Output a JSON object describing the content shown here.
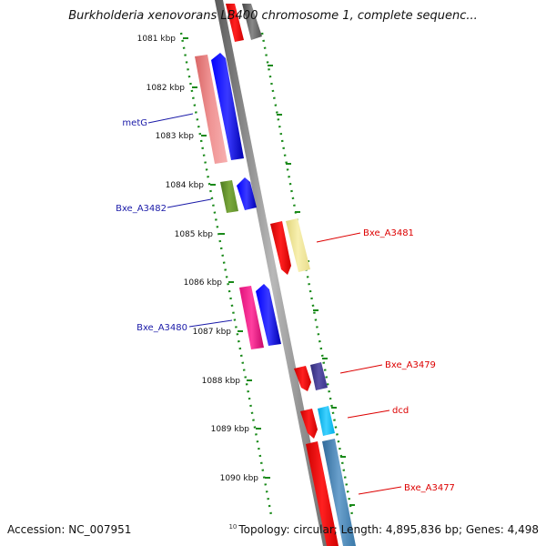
{
  "title": "Burkholderia xenovorans LB400 chromosome 1, complete sequenc...",
  "footer": {
    "accession": "Accession: NC_007951",
    "topology_prefix": "10",
    "topology": "Topology: circular; Length: 4,895,836 bp; Genes: 4,498"
  },
  "ruler_labels": [
    "1081 kbp",
    "1082 kbp",
    "1083 kbp",
    "1084 kbp",
    "1085 kbp",
    "1086 kbp",
    "1087 kbp",
    "1088 kbp",
    "1089 kbp",
    "1090 kbp"
  ],
  "genes_left": [
    {
      "name": "metG",
      "color": "#1a1aa8"
    },
    {
      "name": "Bxe_A3482",
      "color": "#1a1aa8"
    },
    {
      "name": "Bxe_A3480",
      "color": "#1a1aa8"
    }
  ],
  "genes_right": [
    {
      "name": "Bxe_A3481",
      "color": "#dd0000"
    },
    {
      "name": "Bxe_A3479",
      "color": "#dd0000"
    },
    {
      "name": "dcd",
      "color": "#dd0000"
    },
    {
      "name": "Bxe_A3477",
      "color": "#dd0000"
    }
  ],
  "colors": {
    "backbone": "#808080",
    "ruler": "#1a8a1a",
    "forward_label": "#1a1aa8",
    "reverse_label": "#dd0000"
  }
}
